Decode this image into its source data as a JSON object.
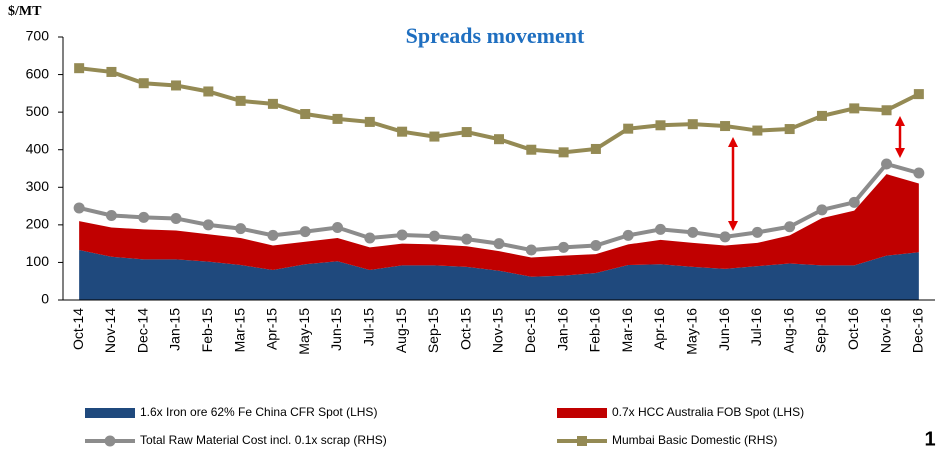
{
  "chart_data": {
    "type": "stacked-area-line",
    "title": "Spreads movement",
    "y_label": "$/MT",
    "categories": [
      "Oct-14",
      "Nov-14",
      "Dec-14",
      "Jan-15",
      "Feb-15",
      "Mar-15",
      "Apr-15",
      "May-15",
      "Jun-15",
      "Jul-15",
      "Aug-15",
      "Sep-15",
      "Oct-15",
      "Nov-15",
      "Dec-15",
      "Jan-16",
      "Feb-16",
      "Mar-16",
      "Apr-16",
      "May-16",
      "Jun-16",
      "Jul-16",
      "Aug-16",
      "Sep-16",
      "Oct-16",
      "Nov-16",
      "Dec-16"
    ],
    "ylim": [
      0,
      700
    ],
    "yticks": [
      0,
      100,
      200,
      300,
      400,
      500,
      600,
      700
    ],
    "series": [
      {
        "name": "1.6x Iron ore 62% Fe China CFR Spot (LHS)",
        "color": "#1f497d",
        "style": "area",
        "stack": true,
        "values": [
          133,
          115,
          108,
          108,
          102,
          93,
          80,
          95,
          103,
          80,
          92,
          92,
          88,
          78,
          62,
          65,
          72,
          93,
          95,
          88,
          83,
          90,
          97,
          92,
          92,
          118,
          127
        ]
      },
      {
        "name": "0.7x HCC Australia FOB Spot (LHS)",
        "color": "#c00000",
        "style": "area",
        "stack": true,
        "values": [
          77,
          78,
          80,
          77,
          73,
          72,
          65,
          60,
          62,
          60,
          58,
          56,
          55,
          52,
          51,
          53,
          50,
          55,
          65,
          64,
          62,
          62,
          75,
          126,
          146,
          217,
          183
        ]
      },
      {
        "name": "Total Raw Material Cost incl. 0.1x scrap (RHS)",
        "color": "#8c8c8c",
        "style": "line",
        "marker": "circle",
        "values": [
          245,
          225,
          220,
          217,
          200,
          190,
          172,
          182,
          193,
          165,
          173,
          170,
          162,
          150,
          133,
          140,
          145,
          172,
          188,
          180,
          168,
          180,
          195,
          240,
          260,
          362,
          338
        ]
      },
      {
        "name": "Mumbai Basic Domestic (RHS)",
        "color": "#948a54",
        "style": "line",
        "marker": "square",
        "values": [
          617,
          607,
          577,
          571,
          555,
          530,
          522,
          495,
          482,
          474,
          448,
          435,
          447,
          428,
          400,
          393,
          402,
          456,
          465,
          468,
          463,
          451,
          455,
          490,
          510,
          505,
          548
        ]
      }
    ]
  },
  "page_number": "1"
}
